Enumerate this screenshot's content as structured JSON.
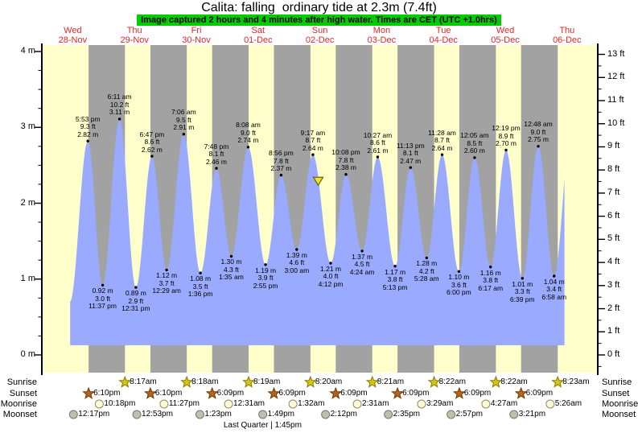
{
  "title": "Calita: falling  ordinary tide at 2.3m (7.4ft)",
  "banner": "Image captured 2 hours and 4 minutes after high water. Times are CET (UTC +1.0hrs)",
  "colors": {
    "day_bg": "#ffffcc",
    "night_bg": "#a2a2a2",
    "tide_fill": "#99aaff",
    "day_label_text": "#e62626",
    "banner_bg": "#00cc00",
    "marker_fill": "#ede02a",
    "marker_stroke": "#6b6400",
    "sunrise_star_fill": "#d8c414",
    "sunrise_star_stroke": "#8a7a00",
    "sunset_star_fill": "#b4641e",
    "sunset_star_stroke": "#6e3a00",
    "moonrise_fill": "#ffffd8",
    "moonrise_stroke": "#8a8a66",
    "moonset_fill": "#bfbfad",
    "moonset_stroke": "#77776a"
  },
  "days": [
    {
      "weekday": "Wed",
      "date": "28-Nov"
    },
    {
      "weekday": "Thu",
      "date": "29-Nov"
    },
    {
      "weekday": "Fri",
      "date": "30-Nov"
    },
    {
      "weekday": "Sat",
      "date": "01-Dec"
    },
    {
      "weekday": "Sun",
      "date": "02-Dec"
    },
    {
      "weekday": "Mon",
      "date": "03-Dec"
    },
    {
      "weekday": "Tue",
      "date": "04-Dec"
    },
    {
      "weekday": "Wed",
      "date": "05-Dec"
    },
    {
      "weekday": "Thu",
      "date": "06-Dec"
    }
  ],
  "chart_data": {
    "type": "area",
    "title": "Calita: falling  ordinary tide at 2.3m (7.4ft)",
    "ylabel_left": "m",
    "ylabel_right": "ft",
    "y_left_ticks": [
      0,
      1,
      2,
      3,
      4
    ],
    "y_right_ticks": [
      0,
      1,
      2,
      3,
      4,
      5,
      6,
      7,
      8,
      9,
      10,
      11,
      12,
      13
    ],
    "y_left_unit": "m",
    "y_right_unit": "ft",
    "tide_events": [
      {
        "kind": "high",
        "day": 0,
        "time": "5:53 pm",
        "m": 2.82,
        "ft": 9.3
      },
      {
        "kind": "low",
        "day": 0,
        "time": "11:37 pm",
        "m": 0.92,
        "ft": 3.0
      },
      {
        "kind": "high",
        "day": 1,
        "time": "6:11 am",
        "m": 3.11,
        "ft": 10.2
      },
      {
        "kind": "low",
        "day": 1,
        "time": "12:31 pm",
        "m": 0.89,
        "ft": 2.9
      },
      {
        "kind": "high",
        "day": 1,
        "time": "6:47 pm",
        "m": 2.62,
        "ft": 8.6
      },
      {
        "kind": "low",
        "day": 2,
        "time": "12:29 am",
        "m": 1.12,
        "ft": 3.7
      },
      {
        "kind": "high",
        "day": 2,
        "time": "7:06 am",
        "m": 2.91,
        "ft": 9.5
      },
      {
        "kind": "low",
        "day": 2,
        "time": "1:36 pm",
        "m": 1.08,
        "ft": 3.5
      },
      {
        "kind": "high",
        "day": 2,
        "time": "7:48 pm",
        "m": 2.46,
        "ft": 8.1
      },
      {
        "kind": "low",
        "day": 3,
        "time": "1:35 am",
        "m": 1.3,
        "ft": 4.3
      },
      {
        "kind": "high",
        "day": 3,
        "time": "8:08 am",
        "m": 2.74,
        "ft": 9.0
      },
      {
        "kind": "low",
        "day": 3,
        "time": "2:55 pm",
        "m": 1.19,
        "ft": 3.9
      },
      {
        "kind": "high",
        "day": 3,
        "time": "8:56 pm",
        "m": 2.37,
        "ft": 7.8
      },
      {
        "kind": "low",
        "day": 4,
        "time": "3:00 am",
        "m": 1.39,
        "ft": 4.6
      },
      {
        "kind": "high",
        "day": 4,
        "time": "9:17 am",
        "m": 2.64,
        "ft": 8.7
      },
      {
        "kind": "low",
        "day": 4,
        "time": "4:12 pm",
        "m": 1.21,
        "ft": 4.0
      },
      {
        "kind": "high",
        "day": 4,
        "time": "10:08 pm",
        "m": 2.38,
        "ft": 7.8
      },
      {
        "kind": "low",
        "day": 5,
        "time": "4:24 am",
        "m": 1.37,
        "ft": 4.5
      },
      {
        "kind": "high",
        "day": 5,
        "time": "10:27 am",
        "m": 2.61,
        "ft": 8.6
      },
      {
        "kind": "low",
        "day": 5,
        "time": "5:13 pm",
        "m": 1.17,
        "ft": 3.8
      },
      {
        "kind": "high",
        "day": 5,
        "time": "11:13 pm",
        "m": 2.47,
        "ft": 8.1
      },
      {
        "kind": "low",
        "day": 6,
        "time": "5:28 am",
        "m": 1.28,
        "ft": 4.2
      },
      {
        "kind": "high",
        "day": 6,
        "time": "11:28 am",
        "m": 2.64,
        "ft": 8.7
      },
      {
        "kind": "low",
        "day": 6,
        "time": "6:00 pm",
        "m": 1.1,
        "ft": 3.6
      },
      {
        "kind": "high",
        "day": 7,
        "time": "12:05 am",
        "m": 2.6,
        "ft": 8.5
      },
      {
        "kind": "low",
        "day": 7,
        "time": "6:17 am",
        "m": 1.16,
        "ft": 3.8
      },
      {
        "kind": "high",
        "day": 7,
        "time": "12:19 pm",
        "m": 2.7,
        "ft": 8.9
      },
      {
        "kind": "low",
        "day": 7,
        "time": "6:39 pm",
        "m": 1.01,
        "ft": 3.3
      },
      {
        "kind": "high",
        "day": 8,
        "time": "12:48 am",
        "m": 2.75,
        "ft": 9.0
      },
      {
        "kind": "low",
        "day": 8,
        "time": "6:58 am",
        "m": 1.04,
        "ft": 3.4
      }
    ],
    "current_marker": {
      "height_m": 2.3,
      "minutes_after_high_water": 124,
      "after_high_event_index": 14
    }
  },
  "astro": {
    "rows": [
      {
        "key": "sunrise",
        "label": "Sunrise",
        "events": [
          {
            "day": 1,
            "time": "8:17am"
          },
          {
            "day": 2,
            "time": "8:18am"
          },
          {
            "day": 3,
            "time": "8:19am"
          },
          {
            "day": 4,
            "time": "8:20am"
          },
          {
            "day": 5,
            "time": "8:21am"
          },
          {
            "day": 6,
            "time": "8:22am"
          },
          {
            "day": 7,
            "time": "8:22am"
          },
          {
            "day": 8,
            "time": "8:23am"
          }
        ]
      },
      {
        "key": "sunset",
        "label": "Sunset",
        "events": [
          {
            "day": 0,
            "time": "6:10pm"
          },
          {
            "day": 1,
            "time": "6:10pm"
          },
          {
            "day": 2,
            "time": "6:09pm"
          },
          {
            "day": 3,
            "time": "6:09pm"
          },
          {
            "day": 4,
            "time": "6:09pm"
          },
          {
            "day": 5,
            "time": "6:09pm"
          },
          {
            "day": 6,
            "time": "6:09pm"
          },
          {
            "day": 7,
            "time": "6:09pm"
          }
        ]
      },
      {
        "key": "moonrise",
        "label": "Moonrise",
        "events": [
          {
            "day": 0,
            "time": "10:18pm"
          },
          {
            "day": 1,
            "time": "11:27pm"
          },
          {
            "day": 3,
            "time": "12:31am"
          },
          {
            "day": 4,
            "time": "1:32am"
          },
          {
            "day": 5,
            "time": "2:31am"
          },
          {
            "day": 6,
            "time": "3:29am"
          },
          {
            "day": 7,
            "time": "4:27am"
          },
          {
            "day": 8,
            "time": "5:26am"
          }
        ]
      },
      {
        "key": "moonset",
        "label": "Moonset",
        "events": [
          {
            "day": 0,
            "time": "12:17pm"
          },
          {
            "day": 1,
            "time": "12:53pm"
          },
          {
            "day": 2,
            "time": "1:23pm"
          },
          {
            "day": 3,
            "time": "1:49pm"
          },
          {
            "day": 4,
            "time": "2:12pm"
          },
          {
            "day": 5,
            "time": "2:35pm"
          },
          {
            "day": 6,
            "time": "2:57pm"
          },
          {
            "day": 7,
            "time": "3:21pm"
          }
        ]
      }
    ],
    "moon_phase": "Last Quarter | 1:45pm"
  }
}
